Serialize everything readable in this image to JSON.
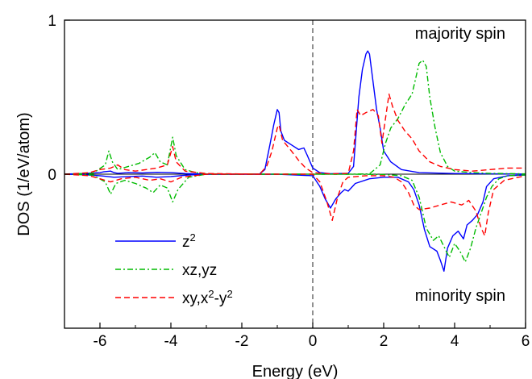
{
  "chart_data": {
    "type": "line",
    "xlabel": "Energy (eV)",
    "ylabel": "DOS (1/eV/atom)",
    "xlim": [
      -7,
      6
    ],
    "ylim": [
      -1,
      1
    ],
    "xticks": [
      {
        "value": -6,
        "label": "-6"
      },
      {
        "value": -4,
        "label": "-4"
      },
      {
        "value": -2,
        "label": "-2"
      },
      {
        "value": 0,
        "label": "0"
      },
      {
        "value": 2,
        "label": "2"
      },
      {
        "value": 4,
        "label": "4"
      },
      {
        "value": 6,
        "label": "6"
      }
    ],
    "yticks": [
      {
        "value": 1,
        "label": "1"
      },
      {
        "value": 0,
        "label": "0"
      }
    ],
    "fermi_level": 0,
    "grid": false,
    "legend_position": "bottom-left",
    "annotations": {
      "top": "majority spin",
      "bottom": "minority spin"
    },
    "series": [
      {
        "name_base": "z",
        "name_sup": "2",
        "name_rest": "",
        "name_rest_sup": "",
        "name_tail": "",
        "color": "#0000ff",
        "dash": "solid",
        "majority": [
          [
            -7,
            0
          ],
          [
            -6.5,
            0.004
          ],
          [
            -6.0,
            0.01
          ],
          [
            -5.9,
            0.015
          ],
          [
            -5.7,
            0.02
          ],
          [
            -5.6,
            0.01
          ],
          [
            -5.5,
            0.006
          ],
          [
            -5.2,
            0.01
          ],
          [
            -4.8,
            0.008
          ],
          [
            -4.4,
            0.012
          ],
          [
            -4.0,
            0.01
          ],
          [
            -3.6,
            0.004
          ],
          [
            -3,
            0.001
          ],
          [
            -1.5,
            0.001
          ],
          [
            -1.35,
            0.03
          ],
          [
            -1.2,
            0.2
          ],
          [
            -1.1,
            0.32
          ],
          [
            -1.0,
            0.42
          ],
          [
            -0.95,
            0.4
          ],
          [
            -0.9,
            0.28
          ],
          [
            -0.8,
            0.22
          ],
          [
            -0.6,
            0.19
          ],
          [
            -0.4,
            0.16
          ],
          [
            -0.25,
            0.17
          ],
          [
            -0.15,
            0.12
          ],
          [
            0,
            0.04
          ],
          [
            0.2,
            0.01
          ],
          [
            0.5,
            0.003
          ],
          [
            1.0,
            0.005
          ],
          [
            1.15,
            0.05
          ],
          [
            1.3,
            0.5
          ],
          [
            1.4,
            0.68
          ],
          [
            1.5,
            0.78
          ],
          [
            1.55,
            0.8
          ],
          [
            1.6,
            0.78
          ],
          [
            1.7,
            0.6
          ],
          [
            1.8,
            0.42
          ],
          [
            1.9,
            0.3
          ],
          [
            2.0,
            0.15
          ],
          [
            2.2,
            0.08
          ],
          [
            2.5,
            0.03
          ],
          [
            3,
            0.01
          ],
          [
            4,
            0.004
          ],
          [
            5,
            0.002
          ],
          [
            6,
            0.001
          ]
        ],
        "minority": [
          [
            -7,
            0
          ],
          [
            -6.5,
            -0.003
          ],
          [
            -6.0,
            -0.01
          ],
          [
            -5.6,
            -0.02
          ],
          [
            -5.2,
            -0.015
          ],
          [
            -4.8,
            -0.012
          ],
          [
            -4.4,
            -0.02
          ],
          [
            -4.0,
            -0.015
          ],
          [
            -3.5,
            -0.005
          ],
          [
            -3,
            -0.001
          ],
          [
            -1,
            0
          ],
          [
            0,
            -0.01
          ],
          [
            0.2,
            -0.08
          ],
          [
            0.35,
            -0.16
          ],
          [
            0.5,
            -0.22
          ],
          [
            0.65,
            -0.16
          ],
          [
            0.8,
            -0.12
          ],
          [
            0.9,
            -0.1
          ],
          [
            1.0,
            -0.11
          ],
          [
            1.2,
            -0.06
          ],
          [
            1.6,
            -0.03
          ],
          [
            2.0,
            -0.02
          ],
          [
            2.4,
            -0.02
          ],
          [
            2.7,
            -0.05
          ],
          [
            2.85,
            -0.1
          ],
          [
            3.0,
            -0.2
          ],
          [
            3.15,
            -0.36
          ],
          [
            3.3,
            -0.47
          ],
          [
            3.5,
            -0.5
          ],
          [
            3.6,
            -0.56
          ],
          [
            3.7,
            -0.63
          ],
          [
            3.8,
            -0.48
          ],
          [
            3.95,
            -0.4
          ],
          [
            4.1,
            -0.37
          ],
          [
            4.25,
            -0.42
          ],
          [
            4.35,
            -0.33
          ],
          [
            4.5,
            -0.3
          ],
          [
            4.65,
            -0.26
          ],
          [
            4.8,
            -0.18
          ],
          [
            4.9,
            -0.08
          ],
          [
            5.1,
            -0.03
          ],
          [
            5.5,
            -0.01
          ],
          [
            6,
            -0.005
          ]
        ]
      },
      {
        "name_base": "xz,yz",
        "name_sup": "",
        "name_rest": "",
        "name_rest_sup": "",
        "name_tail": "",
        "color": "#00bb00",
        "dash": "dashdot",
        "majority": [
          [
            -7,
            0
          ],
          [
            -6.2,
            0.005
          ],
          [
            -5.85,
            0.06
          ],
          [
            -5.75,
            0.15
          ],
          [
            -5.65,
            0.08
          ],
          [
            -5.5,
            0.03
          ],
          [
            -5.2,
            0.05
          ],
          [
            -4.9,
            0.07
          ],
          [
            -4.6,
            0.11
          ],
          [
            -4.45,
            0.14
          ],
          [
            -4.3,
            0.08
          ],
          [
            -4.1,
            0.06
          ],
          [
            -3.95,
            0.24
          ],
          [
            -3.85,
            0.12
          ],
          [
            -3.6,
            0.03
          ],
          [
            -3.3,
            0.01
          ],
          [
            -3,
            0.002
          ],
          [
            -1,
            0
          ],
          [
            1.0,
            0
          ],
          [
            1.6,
            0.002
          ],
          [
            1.9,
            0.06
          ],
          [
            2.05,
            0.2
          ],
          [
            2.2,
            0.3
          ],
          [
            2.4,
            0.36
          ],
          [
            2.6,
            0.45
          ],
          [
            2.8,
            0.52
          ],
          [
            2.9,
            0.62
          ],
          [
            3.0,
            0.72
          ],
          [
            3.1,
            0.74
          ],
          [
            3.2,
            0.7
          ],
          [
            3.3,
            0.5
          ],
          [
            3.45,
            0.3
          ],
          [
            3.6,
            0.14
          ],
          [
            3.8,
            0.05
          ],
          [
            4.0,
            0.02
          ],
          [
            4.5,
            0.01
          ],
          [
            5,
            0.005
          ],
          [
            6,
            0.002
          ]
        ],
        "minority": [
          [
            -7,
            0
          ],
          [
            -6.2,
            -0.005
          ],
          [
            -5.85,
            -0.05
          ],
          [
            -5.7,
            -0.13
          ],
          [
            -5.55,
            -0.06
          ],
          [
            -5.3,
            -0.04
          ],
          [
            -5.0,
            -0.06
          ],
          [
            -4.7,
            -0.09
          ],
          [
            -4.5,
            -0.12
          ],
          [
            -4.3,
            -0.07
          ],
          [
            -4.1,
            -0.09
          ],
          [
            -3.95,
            -0.18
          ],
          [
            -3.8,
            -0.1
          ],
          [
            -3.5,
            -0.02
          ],
          [
            -3,
            0
          ],
          [
            1.0,
            0
          ],
          [
            2.0,
            -0.002
          ],
          [
            2.5,
            -0.01
          ],
          [
            2.8,
            -0.04
          ],
          [
            3.0,
            -0.15
          ],
          [
            3.2,
            -0.35
          ],
          [
            3.4,
            -0.43
          ],
          [
            3.55,
            -0.4
          ],
          [
            3.7,
            -0.47
          ],
          [
            3.85,
            -0.54
          ],
          [
            4.0,
            -0.45
          ],
          [
            4.15,
            -0.5
          ],
          [
            4.3,
            -0.57
          ],
          [
            4.45,
            -0.48
          ],
          [
            4.6,
            -0.35
          ],
          [
            4.75,
            -0.25
          ],
          [
            4.9,
            -0.15
          ],
          [
            5.05,
            -0.08
          ],
          [
            5.25,
            -0.03
          ],
          [
            5.5,
            -0.01
          ],
          [
            6,
            -0.005
          ]
        ]
      },
      {
        "name_base": "xy,x",
        "name_sup": "2",
        "name_rest": "-y",
        "name_rest_sup": "2",
        "name_tail": "",
        "color": "#ff0000",
        "dash": "dashed",
        "majority": [
          [
            -7,
            0
          ],
          [
            -6.3,
            0.01
          ],
          [
            -6.0,
            0.03
          ],
          [
            -5.7,
            0.04
          ],
          [
            -5.5,
            0.06
          ],
          [
            -5.3,
            0.03
          ],
          [
            -5.0,
            0.02
          ],
          [
            -4.7,
            0.03
          ],
          [
            -4.4,
            0.04
          ],
          [
            -4.1,
            0.06
          ],
          [
            -3.95,
            0.18
          ],
          [
            -3.85,
            0.08
          ],
          [
            -3.6,
            0.02
          ],
          [
            -3,
            0.004
          ],
          [
            -1.5,
            0
          ],
          [
            -1.3,
            0.05
          ],
          [
            -1.15,
            0.15
          ],
          [
            -1.0,
            0.3
          ],
          [
            -0.95,
            0.32
          ],
          [
            -0.85,
            0.22
          ],
          [
            -0.6,
            0.15
          ],
          [
            -0.4,
            0.09
          ],
          [
            -0.2,
            0.04
          ],
          [
            0,
            0.01
          ],
          [
            0.5,
            0.002
          ],
          [
            1.0,
            0.005
          ],
          [
            1.15,
            0.15
          ],
          [
            1.25,
            0.42
          ],
          [
            1.35,
            0.38
          ],
          [
            1.5,
            0.4
          ],
          [
            1.7,
            0.42
          ],
          [
            1.85,
            0.38
          ],
          [
            1.95,
            0.2
          ],
          [
            2.05,
            0.36
          ],
          [
            2.15,
            0.52
          ],
          [
            2.25,
            0.44
          ],
          [
            2.4,
            0.35
          ],
          [
            2.6,
            0.28
          ],
          [
            2.8,
            0.23
          ],
          [
            3.0,
            0.15
          ],
          [
            3.3,
            0.08
          ],
          [
            3.6,
            0.05
          ],
          [
            4.0,
            0.03
          ],
          [
            4.5,
            0.02
          ],
          [
            5.0,
            0.03
          ],
          [
            5.5,
            0.04
          ],
          [
            6,
            0.04
          ]
        ],
        "minority": [
          [
            -7,
            0
          ],
          [
            -6.3,
            -0.01
          ],
          [
            -6.0,
            -0.03
          ],
          [
            -5.7,
            -0.05
          ],
          [
            -5.4,
            -0.03
          ],
          [
            -5.0,
            -0.02
          ],
          [
            -4.6,
            -0.04
          ],
          [
            -4.3,
            -0.03
          ],
          [
            -4.0,
            -0.05
          ],
          [
            -3.7,
            -0.02
          ],
          [
            -3,
            0
          ],
          [
            0,
            0
          ],
          [
            0.2,
            -0.05
          ],
          [
            0.4,
            -0.18
          ],
          [
            0.55,
            -0.3
          ],
          [
            0.7,
            -0.15
          ],
          [
            0.85,
            -0.05
          ],
          [
            1.0,
            -0.02
          ],
          [
            1.5,
            -0.01
          ],
          [
            2.0,
            -0.01
          ],
          [
            2.3,
            -0.02
          ],
          [
            2.5,
            -0.05
          ],
          [
            2.7,
            -0.12
          ],
          [
            2.85,
            -0.2
          ],
          [
            3.0,
            -0.23
          ],
          [
            3.3,
            -0.22
          ],
          [
            3.6,
            -0.2
          ],
          [
            3.9,
            -0.18
          ],
          [
            4.2,
            -0.2
          ],
          [
            4.4,
            -0.17
          ],
          [
            4.6,
            -0.24
          ],
          [
            4.75,
            -0.35
          ],
          [
            4.85,
            -0.4
          ],
          [
            4.95,
            -0.25
          ],
          [
            5.1,
            -0.1
          ],
          [
            5.4,
            -0.04
          ],
          [
            5.8,
            -0.02
          ],
          [
            6,
            -0.01
          ]
        ]
      }
    ]
  }
}
